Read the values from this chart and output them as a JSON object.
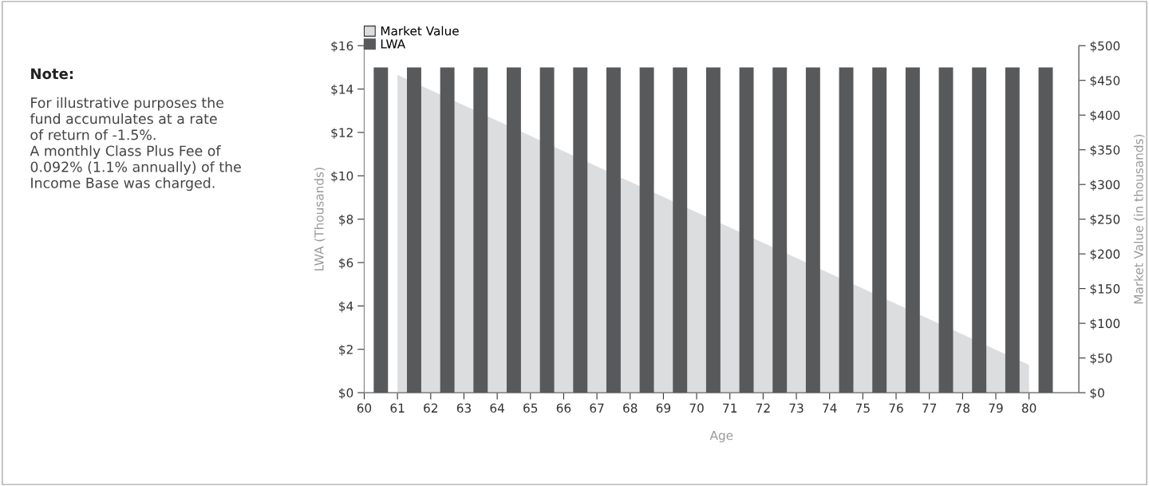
{
  "chart_data": {
    "type": "bar",
    "xlabel": "Age",
    "ylabel": "LWA (Thousands)",
    "y2label": "Market Value (in thousands)",
    "annotations": [
      "Note:",
      "For illustrative purposes the\nfund accumulates at a rate\nof return of -1.5%.\nA monthly Class Plus Fee of\n0.092% (1.1% annually) of the\nIncome Base was charged."
    ],
    "x": [
      60.5,
      61.5,
      62.5,
      63.5,
      64.5,
      65.5,
      66.5,
      67.5,
      68.5,
      69.5,
      70.5,
      71.5,
      72.5,
      73.5,
      74.5,
      75.5,
      76.5,
      77.5,
      78.5,
      79.5,
      80.5
    ],
    "series": [
      {
        "name": "Market Value",
        "type": "area",
        "axis": "y2",
        "color": "#dcdddf",
        "x": [
          61,
          62,
          63,
          64,
          65,
          66,
          67,
          68,
          69,
          70,
          71,
          72,
          73,
          74,
          75,
          76,
          77,
          78,
          79,
          80
        ],
        "values": [
          458,
          436,
          414,
          392,
          370,
          348,
          326,
          304,
          282,
          260,
          238,
          216,
          194,
          172,
          150,
          128,
          106,
          84,
          62,
          40
        ]
      },
      {
        "name": "LWA",
        "color": "#58595b",
        "values": [
          15,
          15,
          15,
          15,
          15,
          15,
          15,
          15,
          15,
          15,
          15,
          15,
          15,
          15,
          15,
          15,
          15,
          15,
          15,
          15,
          15
        ]
      }
    ],
    "xlim": [
      60,
      81.5
    ],
    "xticks": [
      60,
      61,
      62,
      63,
      64,
      65,
      66,
      67,
      68,
      69,
      70,
      71,
      72,
      73,
      74,
      75,
      76,
      77,
      78,
      79,
      80
    ],
    "ylim": [
      0,
      16
    ],
    "yticks": [
      {
        "value": 0,
        "label": "$0"
      },
      {
        "value": 2,
        "label": "$2"
      },
      {
        "value": 4,
        "label": "$4"
      },
      {
        "value": 6,
        "label": "$6"
      },
      {
        "value": 8,
        "label": "$8"
      },
      {
        "value": 10,
        "label": "$10"
      },
      {
        "value": 12,
        "label": "$12"
      },
      {
        "value": 14,
        "label": "$14"
      },
      {
        "value": 16,
        "label": "$16"
      }
    ],
    "y2lim": [
      0,
      500
    ],
    "y2ticks": [
      {
        "value": 0,
        "label": "$0"
      },
      {
        "value": 50,
        "label": "$50"
      },
      {
        "value": 100,
        "label": "$100"
      },
      {
        "value": 150,
        "label": "$150"
      },
      {
        "value": 200,
        "label": "$200"
      },
      {
        "value": 250,
        "label": "$250"
      },
      {
        "value": 300,
        "label": "$300"
      },
      {
        "value": 350,
        "label": "$350"
      },
      {
        "value": 400,
        "label": "$400"
      },
      {
        "value": 450,
        "label": "$450"
      },
      {
        "value": 500,
        "label": "$500"
      }
    ],
    "legend": "top left"
  }
}
